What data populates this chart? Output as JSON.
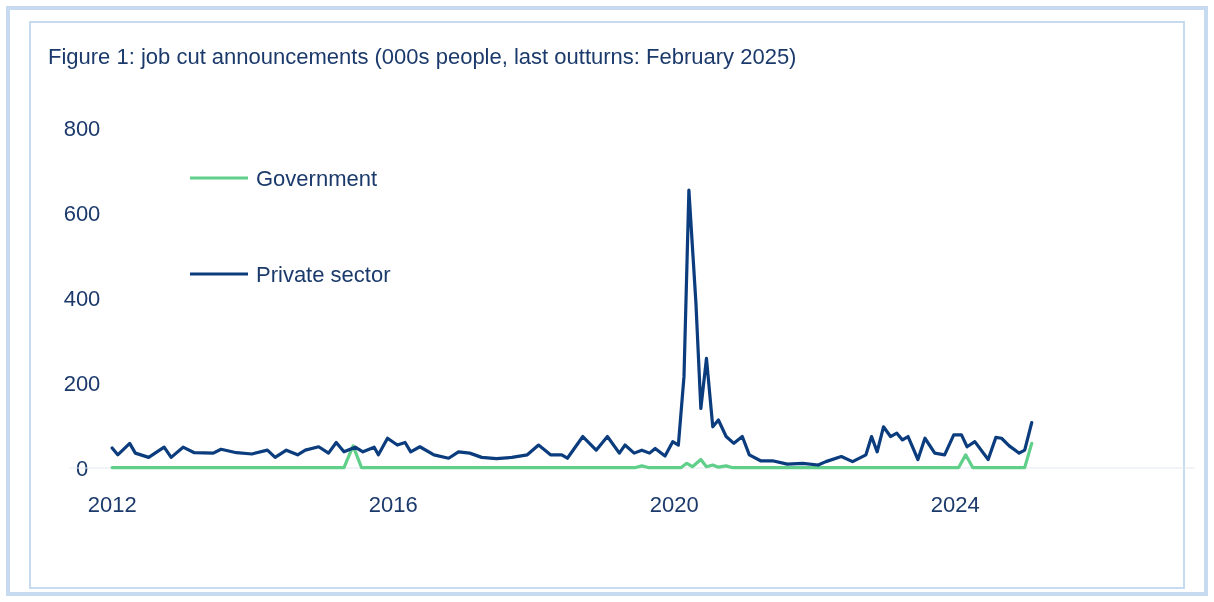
{
  "chart_data": {
    "type": "line",
    "title": "Figure 1: job cut announcements (000s people, last outturns: February 2025)",
    "xlim": [
      2011.4,
      2027.4
    ],
    "xticks": [
      2012,
      2016,
      2020,
      2024
    ],
    "ylim": [
      0,
      800
    ],
    "yticks": [
      0,
      200,
      400,
      600,
      800
    ],
    "grid": false,
    "legend": "top left",
    "line_style": "solid",
    "marker": "none",
    "series": [
      {
        "name": "Government",
        "color": "#5fcf8a",
        "x": [
          2012,
          2015.3,
          2015.43,
          2015.55,
          2019.45,
          2019.54,
          2019.63,
          2020.1,
          2020.18,
          2020.26,
          2020.38,
          2020.46,
          2020.55,
          2020.63,
          2020.74,
          2020.82,
          2024.05,
          2024.15,
          2024.25,
          2024.99,
          2025.09
        ],
        "values": [
          1,
          1,
          52,
          1,
          1,
          5,
          1,
          1,
          11,
          3,
          20,
          3,
          7,
          2,
          5,
          1,
          1,
          31,
          1,
          1,
          58
        ]
      },
      {
        "name": "Private sector",
        "color": "#0b3c7d",
        "x": [
          2012.0,
          2012.08,
          2012.25,
          2012.33,
          2012.52,
          2012.74,
          2012.84,
          2013.01,
          2013.17,
          2013.44,
          2013.55,
          2013.77,
          2013.99,
          2014.21,
          2014.32,
          2014.48,
          2014.64,
          2014.75,
          2014.94,
          2015.08,
          2015.19,
          2015.3,
          2015.46,
          2015.57,
          2015.73,
          2015.79,
          2015.92,
          2016.06,
          2016.17,
          2016.25,
          2016.38,
          2016.58,
          2016.79,
          2016.93,
          2017.09,
          2017.26,
          2017.47,
          2017.69,
          2017.91,
          2018.07,
          2018.24,
          2018.4,
          2018.48,
          2018.7,
          2018.89,
          2019.05,
          2019.22,
          2019.3,
          2019.43,
          2019.54,
          2019.65,
          2019.73,
          2019.87,
          2019.98,
          2020.06,
          2020.14,
          2020.21,
          2020.31,
          2020.38,
          2020.46,
          2020.55,
          2020.63,
          2020.74,
          2020.85,
          2020.97,
          2021.07,
          2021.23,
          2021.4,
          2021.61,
          2021.83,
          2022.05,
          2022.16,
          2022.38,
          2022.54,
          2022.73,
          2022.81,
          2022.89,
          2022.98,
          2023.08,
          2023.17,
          2023.25,
          2023.33,
          2023.47,
          2023.57,
          2023.71,
          2023.85,
          2023.98,
          2024.09,
          2024.17,
          2024.28,
          2024.47,
          2024.58,
          2024.66,
          2024.77,
          2024.91,
          2024.99,
          2025.09
        ],
        "values": [
          47,
          31,
          58,
          35,
          25,
          49,
          25,
          49,
          36,
          35,
          44,
          36,
          33,
          42,
          25,
          42,
          31,
          42,
          50,
          35,
          60,
          38,
          49,
          38,
          49,
          31,
          70,
          54,
          60,
          38,
          50,
          31,
          23,
          38,
          35,
          25,
          22,
          25,
          31,
          54,
          31,
          31,
          23,
          74,
          42,
          74,
          35,
          54,
          35,
          42,
          35,
          46,
          28,
          62,
          54,
          215,
          654,
          388,
          140,
          258,
          97,
          113,
          74,
          58,
          74,
          31,
          17,
          17,
          9,
          11,
          7,
          15,
          27,
          15,
          31,
          74,
          38,
          97,
          74,
          82,
          66,
          74,
          20,
          70,
          35,
          31,
          78,
          78,
          50,
          62,
          20,
          72,
          70,
          52,
          35,
          42,
          107
        ]
      }
    ]
  }
}
